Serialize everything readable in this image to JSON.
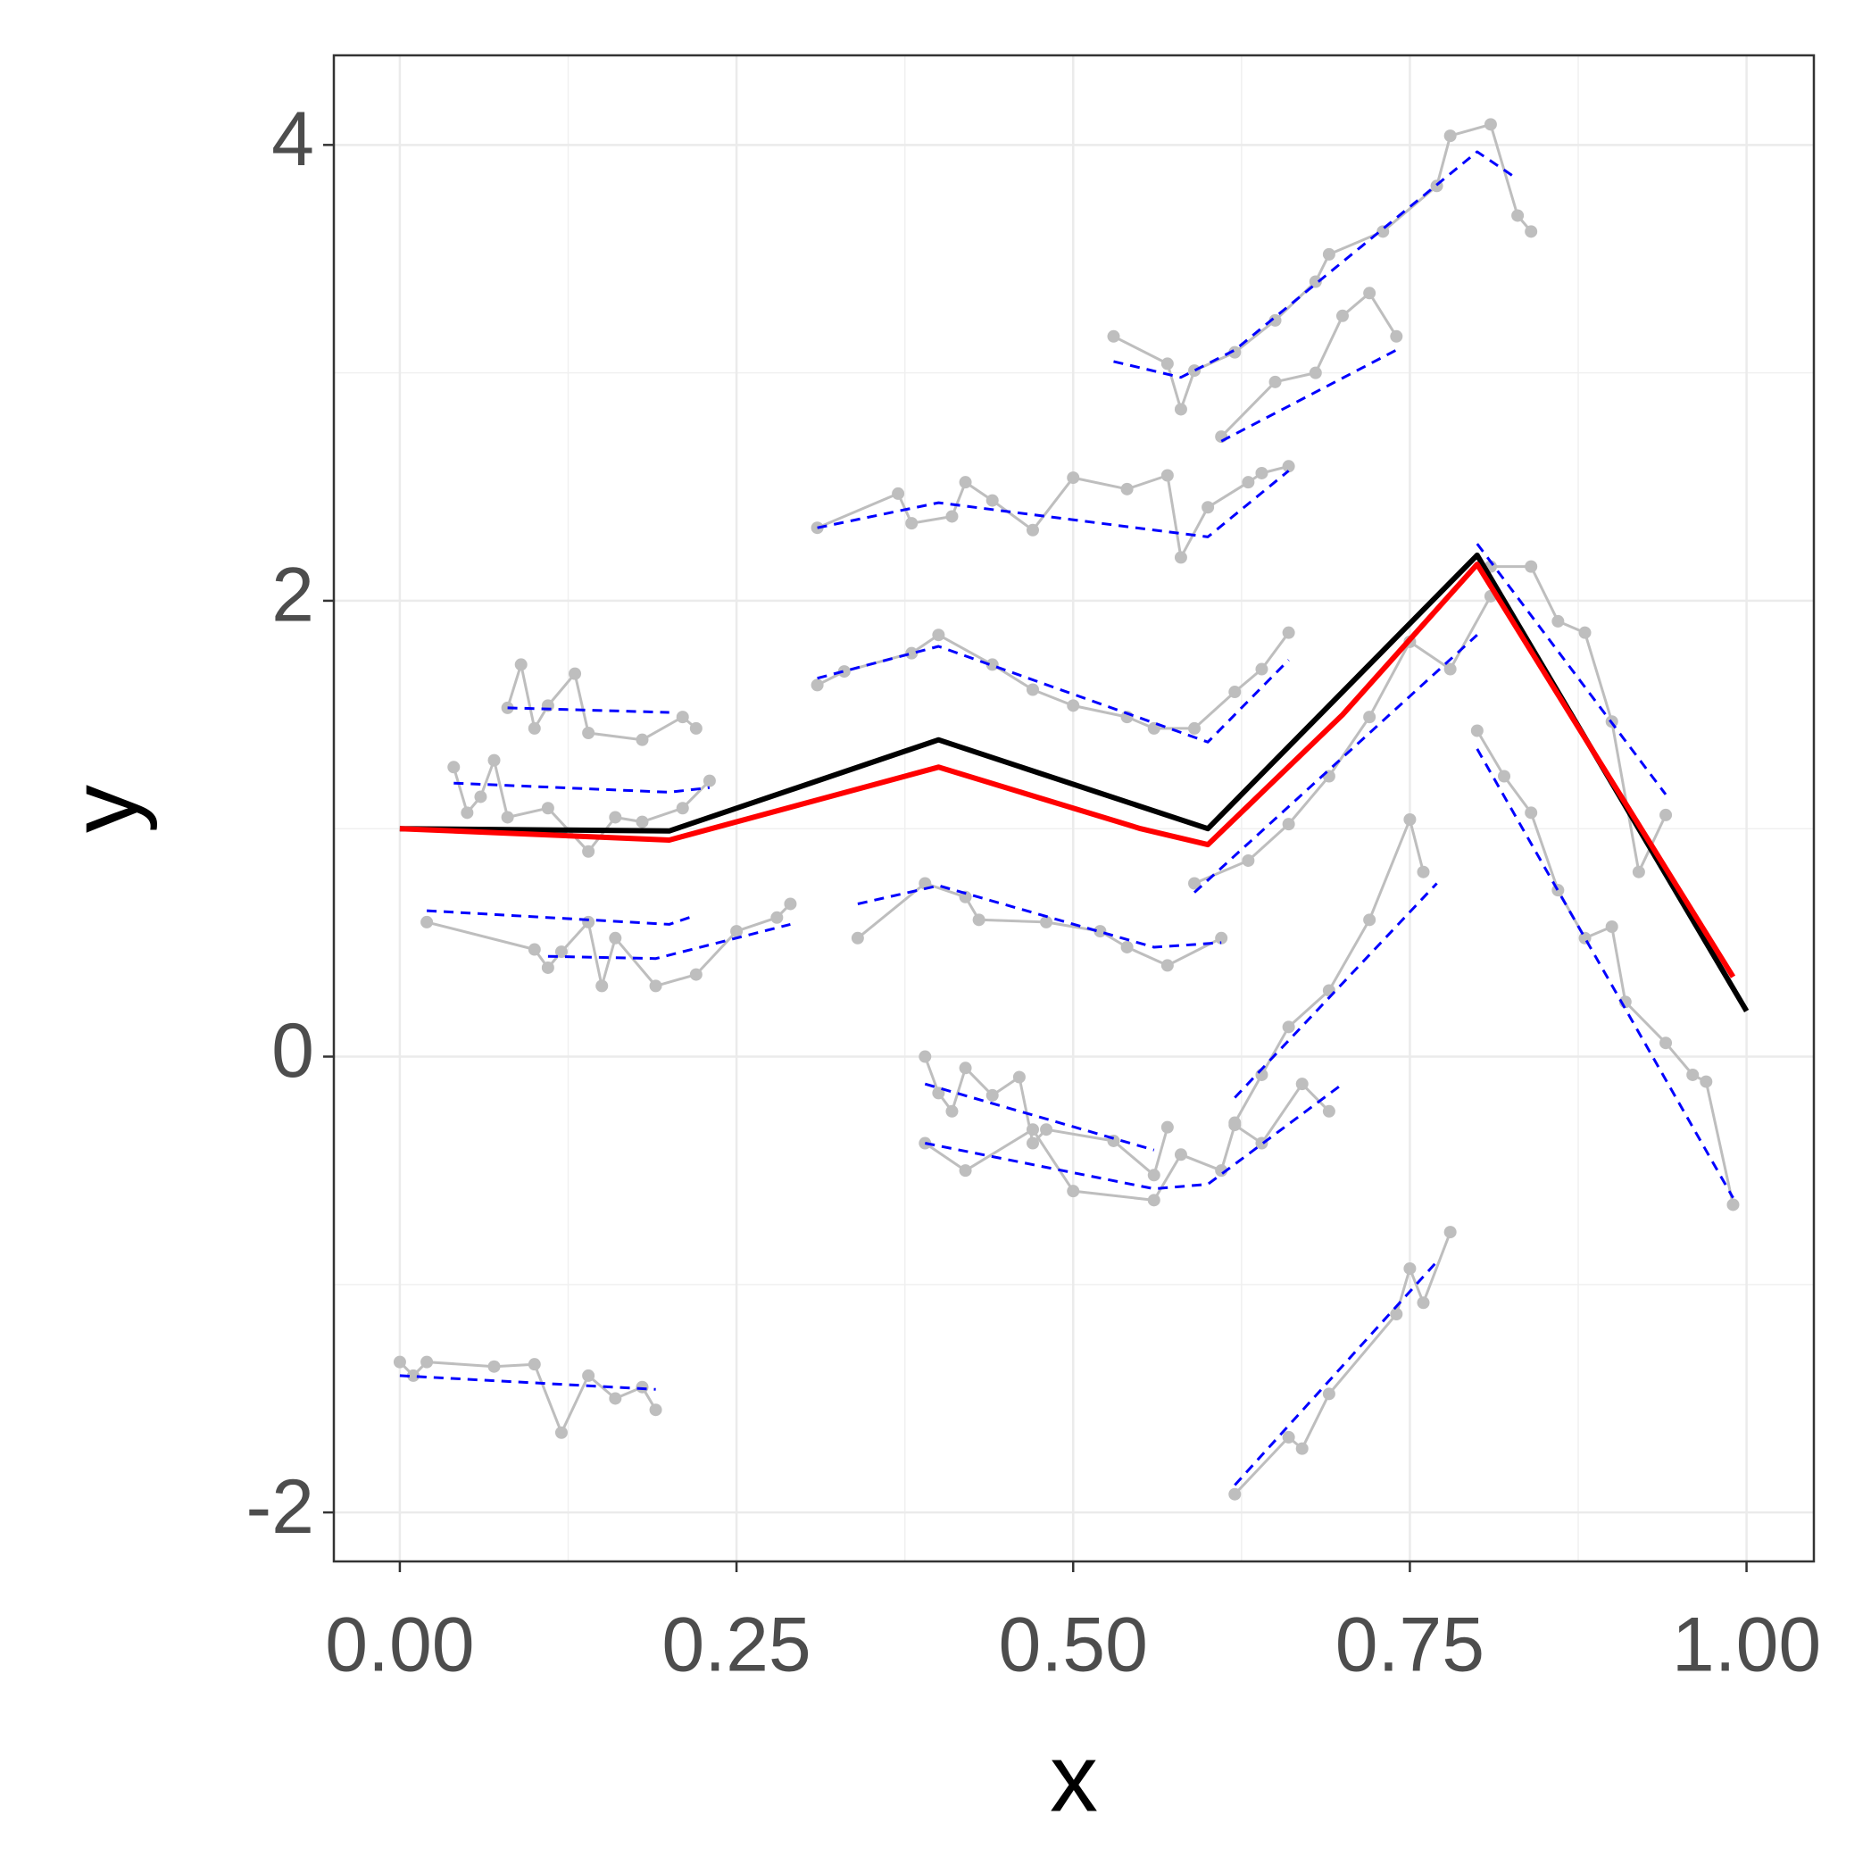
{
  "chart_data": {
    "type": "line",
    "x_label": "x",
    "y_label": "y",
    "xlim": [
      -0.049,
      1.05
    ],
    "ylim": [
      -2.215,
      4.393
    ],
    "xticks": [
      {
        "value": 0,
        "label": "0.00"
      },
      {
        "value": 0.25,
        "label": "0.25"
      },
      {
        "value": 0.5,
        "label": "0.50"
      },
      {
        "value": 0.75,
        "label": "0.75"
      },
      {
        "value": 1,
        "label": "1.00"
      }
    ],
    "yticks": [
      -2,
      0,
      2,
      4
    ],
    "grid": true,
    "series": [
      {
        "style": "points",
        "color": "#bebebe",
        "x": [
          0.0,
          0.01,
          0.02,
          0.07,
          0.1,
          0.12,
          0.14,
          0.16,
          0.18,
          0.19
        ],
        "values": [
          -1.34,
          -1.4,
          -1.34,
          -1.36,
          -1.35,
          -1.65,
          -1.4,
          -1.5,
          -1.45,
          -1.55
        ]
      },
      {
        "style": "points",
        "color": "#bebebe",
        "x": [
          0.62,
          0.66,
          0.67,
          0.69,
          0.74,
          0.75,
          0.76,
          0.78
        ],
        "values": [
          -1.92,
          -1.67,
          -1.72,
          -1.48,
          -1.13,
          -0.93,
          -1.08,
          -0.77
        ]
      },
      {
        "style": "points",
        "color": "#bebebe",
        "x": [
          0.53,
          0.57,
          0.58,
          0.59,
          0.62,
          0.65,
          0.68,
          0.69,
          0.73,
          0.77,
          0.78,
          0.81,
          0.83,
          0.84
        ],
        "values": [
          3.16,
          3.04,
          2.84,
          3.01,
          3.09,
          3.23,
          3.4,
          3.52,
          3.62,
          3.82,
          4.04,
          4.09,
          3.69,
          3.62
        ]
      },
      {
        "style": "points",
        "color": "#bebebe",
        "x": [
          0.31,
          0.37,
          0.38,
          0.41,
          0.42,
          0.44,
          0.47,
          0.5,
          0.54,
          0.57,
          0.58,
          0.6,
          0.63,
          0.64,
          0.66
        ],
        "values": [
          2.32,
          2.47,
          2.34,
          2.37,
          2.52,
          2.44,
          2.31,
          2.54,
          2.49,
          2.55,
          2.19,
          2.41,
          2.52,
          2.56,
          2.59
        ]
      },
      {
        "style": "points",
        "color": "#bebebe",
        "x": [
          0.04,
          0.05,
          0.06,
          0.07,
          0.08,
          0.11,
          0.14,
          0.16,
          0.18,
          0.21,
          0.23
        ],
        "values": [
          1.27,
          1.07,
          1.14,
          1.3,
          1.05,
          1.09,
          0.9,
          1.05,
          1.03,
          1.09,
          1.21
        ]
      },
      {
        "style": "points",
        "color": "#bebebe",
        "x": [
          0.08,
          0.09,
          0.1,
          0.11,
          0.13,
          0.14,
          0.18,
          0.21,
          0.22
        ],
        "values": [
          1.53,
          1.72,
          1.44,
          1.54,
          1.68,
          1.42,
          1.39,
          1.49,
          1.44
        ]
      },
      {
        "style": "points",
        "color": "#bebebe",
        "x": [
          0.02,
          0.1,
          0.11,
          0.12,
          0.14,
          0.15,
          0.16,
          0.19,
          0.22,
          0.25,
          0.28,
          0.29
        ],
        "values": [
          0.59,
          0.47,
          0.39,
          0.46,
          0.59,
          0.31,
          0.52,
          0.31,
          0.36,
          0.55,
          0.61,
          0.67
        ]
      },
      {
        "style": "points",
        "color": "#bebebe",
        "x": [
          0.39,
          0.4,
          0.41,
          0.42,
          0.44,
          0.46,
          0.47,
          0.48,
          0.53,
          0.56,
          0.57
        ],
        "values": [
          0.0,
          -0.16,
          -0.24,
          -0.05,
          -0.17,
          -0.09,
          -0.38,
          -0.32,
          -0.37,
          -0.52,
          -0.31
        ]
      },
      {
        "style": "points",
        "color": "#bebebe",
        "x": [
          0.39,
          0.42,
          0.47,
          0.5,
          0.56,
          0.58,
          0.61,
          0.62,
          0.64,
          0.67,
          0.69
        ],
        "values": [
          -0.38,
          -0.5,
          -0.32,
          -0.59,
          -0.63,
          -0.43,
          -0.5,
          -0.3,
          -0.38,
          -0.12,
          -0.24
        ]
      },
      {
        "style": "points",
        "color": "#bebebe",
        "x": [
          0.8,
          0.82,
          0.84,
          0.86,
          0.88,
          0.9,
          0.91,
          0.94,
          0.96,
          0.97,
          0.99
        ],
        "values": [
          1.43,
          1.23,
          1.07,
          0.73,
          0.52,
          0.57,
          0.24,
          0.06,
          -0.08,
          -0.11,
          -0.65
        ]
      },
      {
        "style": "points",
        "color": "#bebebe",
        "x": [
          0.81,
          0.84,
          0.86,
          0.88,
          0.9,
          0.92,
          0.94
        ],
        "values": [
          2.15,
          2.15,
          1.91,
          1.86,
          1.47,
          0.81,
          1.06
        ]
      },
      {
        "style": "points",
        "color": "#bebebe",
        "x": [
          0.31,
          0.33,
          0.38,
          0.4,
          0.44,
          0.47,
          0.5,
          0.54,
          0.56,
          0.59,
          0.62,
          0.64,
          0.66
        ],
        "values": [
          1.63,
          1.69,
          1.77,
          1.85,
          1.72,
          1.61,
          1.54,
          1.49,
          1.44,
          1.44,
          1.6,
          1.7,
          1.86
        ]
      },
      {
        "style": "points",
        "color": "#bebebe",
        "x": [
          0.34,
          0.39,
          0.42,
          0.43,
          0.48,
          0.52,
          0.54,
          0.57,
          0.61
        ],
        "values": [
          0.52,
          0.76,
          0.7,
          0.6,
          0.59,
          0.55,
          0.48,
          0.4,
          0.52
        ]
      },
      {
        "style": "points",
        "color": "#bebebe",
        "x": [
          0.62,
          0.64,
          0.66,
          0.69,
          0.72,
          0.75,
          0.76
        ],
        "values": [
          -0.29,
          -0.08,
          0.13,
          0.29,
          0.6,
          1.04,
          0.81
        ]
      },
      {
        "style": "points",
        "color": "#bebebe",
        "x": [
          0.59,
          0.63,
          0.66,
          0.69,
          0.72,
          0.75,
          0.78,
          0.81
        ],
        "values": [
          0.76,
          0.86,
          1.02,
          1.23,
          1.49,
          1.82,
          1.7,
          2.02
        ]
      },
      {
        "style": "points",
        "color": "#bebebe",
        "x": [
          0.61,
          0.65,
          0.68,
          0.7,
          0.72,
          0.74
        ],
        "values": [
          2.72,
          2.96,
          3.0,
          3.25,
          3.35,
          3.16
        ]
      },
      {
        "style": "dashed",
        "color": "#0000ff",
        "x": [
          0.0,
          0.19
        ],
        "values": [
          -1.4,
          -1.46
        ]
      },
      {
        "style": "dashed",
        "color": "#0000ff",
        "x": [
          0.62,
          0.77
        ],
        "values": [
          -1.88,
          -0.9
        ]
      },
      {
        "style": "dashed",
        "color": "#0000ff",
        "x": [
          0.53,
          0.58,
          0.62,
          0.8,
          0.83
        ],
        "values": [
          3.05,
          2.98,
          3.1,
          3.97,
          3.85
        ]
      },
      {
        "style": "dashed",
        "color": "#0000ff",
        "x": [
          0.31,
          0.4,
          0.6,
          0.66
        ],
        "values": [
          2.32,
          2.43,
          2.28,
          2.57
        ]
      },
      {
        "style": "dashed",
        "color": "#0000ff",
        "x": [
          0.04,
          0.2,
          0.23
        ],
        "values": [
          1.2,
          1.16,
          1.18
        ]
      },
      {
        "style": "dashed",
        "color": "#0000ff",
        "x": [
          0.08,
          0.2
        ],
        "values": [
          1.53,
          1.51
        ]
      },
      {
        "style": "dashed",
        "color": "#0000ff",
        "x": [
          0.02,
          0.2,
          0.22
        ],
        "values": [
          0.64,
          0.58,
          0.62
        ]
      },
      {
        "style": "dashed",
        "color": "#0000ff",
        "x": [
          0.11,
          0.19,
          0.29
        ],
        "values": [
          0.44,
          0.43,
          0.58
        ]
      },
      {
        "style": "dashed",
        "color": "#0000ff",
        "x": [
          0.39,
          0.56
        ],
        "values": [
          -0.12,
          -0.41
        ]
      },
      {
        "style": "dashed",
        "color": "#0000ff",
        "x": [
          0.39,
          0.56,
          0.6,
          0.7
        ],
        "values": [
          -0.38,
          -0.58,
          -0.56,
          -0.12
        ]
      },
      {
        "style": "dashed",
        "color": "#0000ff",
        "x": [
          0.8,
          0.99
        ],
        "values": [
          1.35,
          -0.62
        ]
      },
      {
        "style": "dashed",
        "color": "#0000ff",
        "x": [
          0.8,
          0.94
        ],
        "values": [
          2.25,
          1.15
        ]
      },
      {
        "style": "dashed",
        "color": "#0000ff",
        "x": [
          0.31,
          0.4,
          0.6,
          0.66
        ],
        "values": [
          1.66,
          1.8,
          1.38,
          1.74
        ]
      },
      {
        "style": "dashed",
        "color": "#0000ff",
        "x": [
          0.34,
          0.4,
          0.56,
          0.61
        ],
        "values": [
          0.67,
          0.75,
          0.48,
          0.5
        ]
      },
      {
        "style": "dashed",
        "color": "#0000ff",
        "x": [
          0.62,
          0.77
        ],
        "values": [
          -0.18,
          0.76
        ]
      },
      {
        "style": "dashed",
        "color": "#0000ff",
        "x": [
          0.59,
          0.8
        ],
        "values": [
          0.72,
          1.85
        ]
      },
      {
        "style": "dashed",
        "color": "#0000ff",
        "x": [
          0.61,
          0.74
        ],
        "values": [
          2.7,
          3.1
        ]
      },
      {
        "style": "solid",
        "color": "#000000",
        "x": [
          0,
          0.2,
          0.4,
          0.6,
          0.8,
          1.0
        ],
        "values": [
          1.0,
          0.99,
          1.39,
          1.0,
          2.2,
          0.2
        ]
      },
      {
        "style": "solid",
        "color": "#ff0000",
        "x": [
          0,
          0.2,
          0.4,
          0.55,
          0.6,
          0.7,
          0.8,
          0.99
        ],
        "values": [
          1.0,
          0.95,
          1.27,
          1.0,
          0.93,
          1.5,
          2.16,
          0.35
        ]
      }
    ]
  }
}
